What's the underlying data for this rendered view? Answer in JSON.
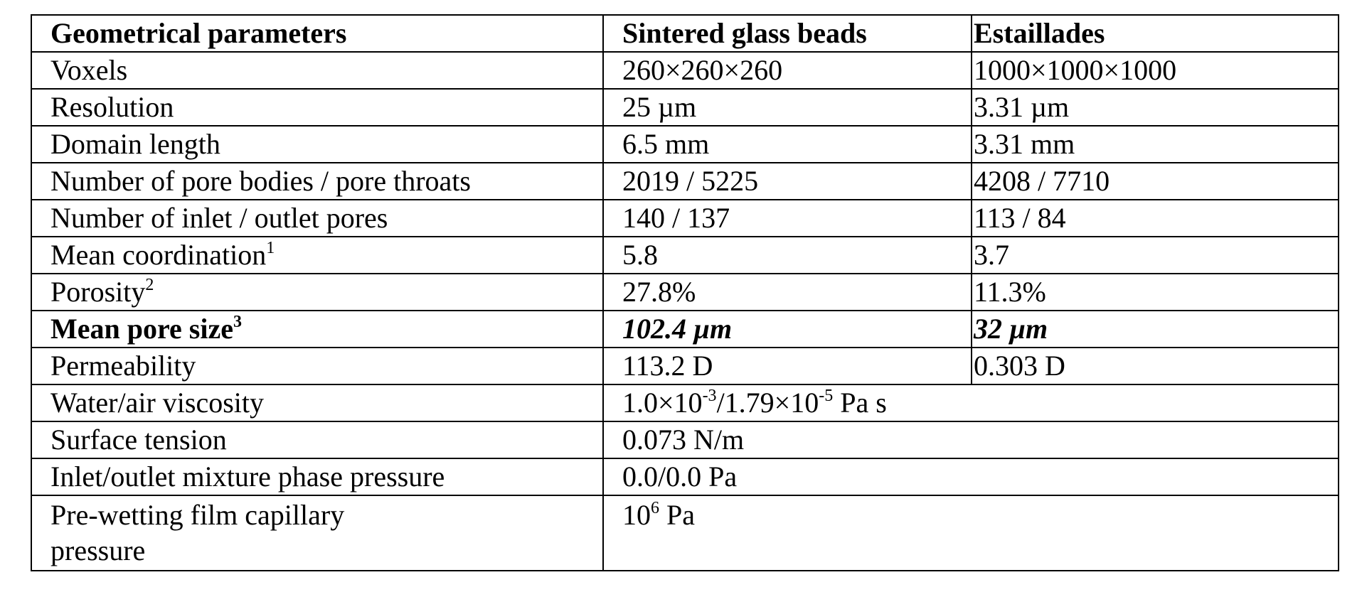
{
  "table": {
    "header": {
      "col1": "Geometrical parameters",
      "col2": "Sintered glass beads",
      "col3": "Estaillades"
    },
    "rows": [
      {
        "label": "Voxels",
        "glass": "260×260×260",
        "estaillades": "1000×1000×1000"
      },
      {
        "label": "Resolution",
        "glass": "25 µm",
        "estaillades": "3.31 µm"
      },
      {
        "label": "Domain length",
        "glass": "6.5 mm",
        "estaillades": "3.31 mm"
      },
      {
        "label": "Number of pore bodies / pore throats",
        "glass": "2019 / 5225",
        "estaillades": "4208 / 7710"
      },
      {
        "label": "Number of inlet / outlet pores",
        "glass": "140 / 137",
        "estaillades": "113 / 84"
      },
      {
        "label": "Mean coordination",
        "label_sup": "1",
        "glass": "5.8",
        "estaillades": "3.7"
      },
      {
        "label": "Porosity",
        "label_sup": "2",
        "glass": "27.8%",
        "estaillades": "11.3%"
      },
      {
        "label": "Mean pore size",
        "label_sup": "3",
        "glass": "102.4 µm",
        "estaillades": "32 µm"
      },
      {
        "label": "Permeability",
        "glass": "113.2 D",
        "estaillades": "0.303 D"
      }
    ],
    "shared_rows": [
      {
        "label": "Water/air viscosity",
        "value_a": "1.0×10",
        "value_a_sup": "-3",
        "value_b": "/1.79×10",
        "value_b_sup": "-5",
        "value_unit": " Pa s"
      },
      {
        "label": "Surface tension",
        "value": "0.073 N/m"
      },
      {
        "label": "Inlet/outlet mixture phase pressure",
        "value": "0.0/0.0 Pa"
      },
      {
        "label": "Pre-wetting film capillary pressure",
        "value_base": "10",
        "value_sup": "6",
        "value_unit": " Pa"
      }
    ]
  }
}
